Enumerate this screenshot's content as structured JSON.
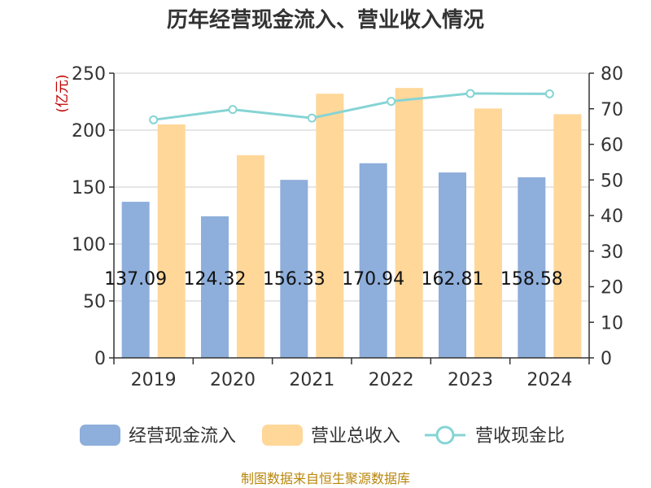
{
  "chart_data": {
    "type": "bar",
    "title": "历年经营现金流入、营业收入情况",
    "categories": [
      "2019",
      "2020",
      "2021",
      "2022",
      "2023",
      "2024"
    ],
    "left_axis": {
      "unit_label": "(亿元)",
      "ylim": [
        0,
        250
      ],
      "ticks": [
        "0",
        "50",
        "100",
        "150",
        "200",
        "250"
      ]
    },
    "right_axis": {
      "unit_label": "%",
      "ylim": [
        0,
        80
      ],
      "ticks": [
        "0",
        "10",
        "20",
        "30",
        "40",
        "50",
        "60",
        "70",
        "80"
      ]
    },
    "series": [
      {
        "name": "经营现金流入",
        "type": "bar",
        "axis": "left",
        "color": "#8eaedb",
        "values": [
          137.09,
          124.32,
          156.33,
          170.94,
          162.81,
          158.58
        ],
        "labels": [
          "137.09",
          "124.32",
          "156.33",
          "170.94",
          "162.81",
          "158.58"
        ]
      },
      {
        "name": "营业总收入",
        "type": "bar",
        "axis": "left",
        "color": "#ffd799",
        "values": [
          205,
          178,
          232,
          237,
          219,
          214
        ]
      },
      {
        "name": "营收现金比",
        "type": "line",
        "axis": "right",
        "color": "#86d4d4",
        "values": [
          66.9,
          69.8,
          67.4,
          72.1,
          74.3,
          74.2
        ]
      }
    ],
    "grid": true,
    "legend_position": "bottom"
  },
  "footer": {
    "source": "制图数据来自恒生聚源数据库"
  }
}
